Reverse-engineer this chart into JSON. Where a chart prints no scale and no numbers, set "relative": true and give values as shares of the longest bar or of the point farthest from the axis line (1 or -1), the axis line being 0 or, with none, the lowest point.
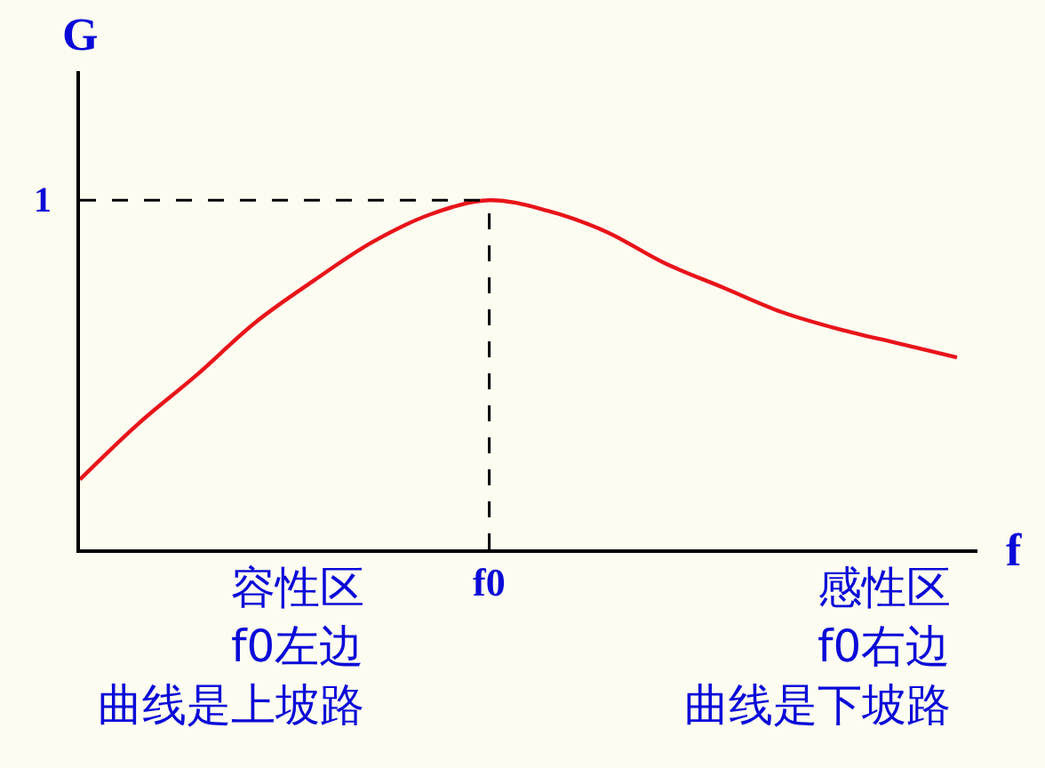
{
  "chart_data": {
    "type": "line",
    "relative": true,
    "xlabel": "f",
    "ylabel": "G",
    "categories": [
      null,
      null,
      null,
      null,
      null,
      null,
      null,
      null,
      null,
      null,
      null,
      null,
      null,
      null,
      null,
      null
    ],
    "series": [
      {
        "color": "#e8141a",
        "values": [
          0.2,
          0.36,
          0.5,
          0.65,
          0.77,
          0.88,
          0.96,
          1,
          0.97,
          0.91,
          0.82,
          0.75,
          0.68,
          0.63,
          0.59,
          0.55
        ]
      }
    ],
    "ref_lines": [
      {
        "axis": "y",
        "value": 1,
        "label": "1",
        "line_style": "dashed",
        "color": "#000000"
      },
      {
        "axis": "x",
        "label": "f0",
        "line_style": "dashed",
        "color": "#000000"
      }
    ],
    "annotations": [
      "容性区",
      "f0左边",
      "曲线是上坡路",
      "感性区",
      "f0右边",
      "曲线是下坡路"
    ],
    "grid": false,
    "marker": "none",
    "line_style": "solid"
  }
}
